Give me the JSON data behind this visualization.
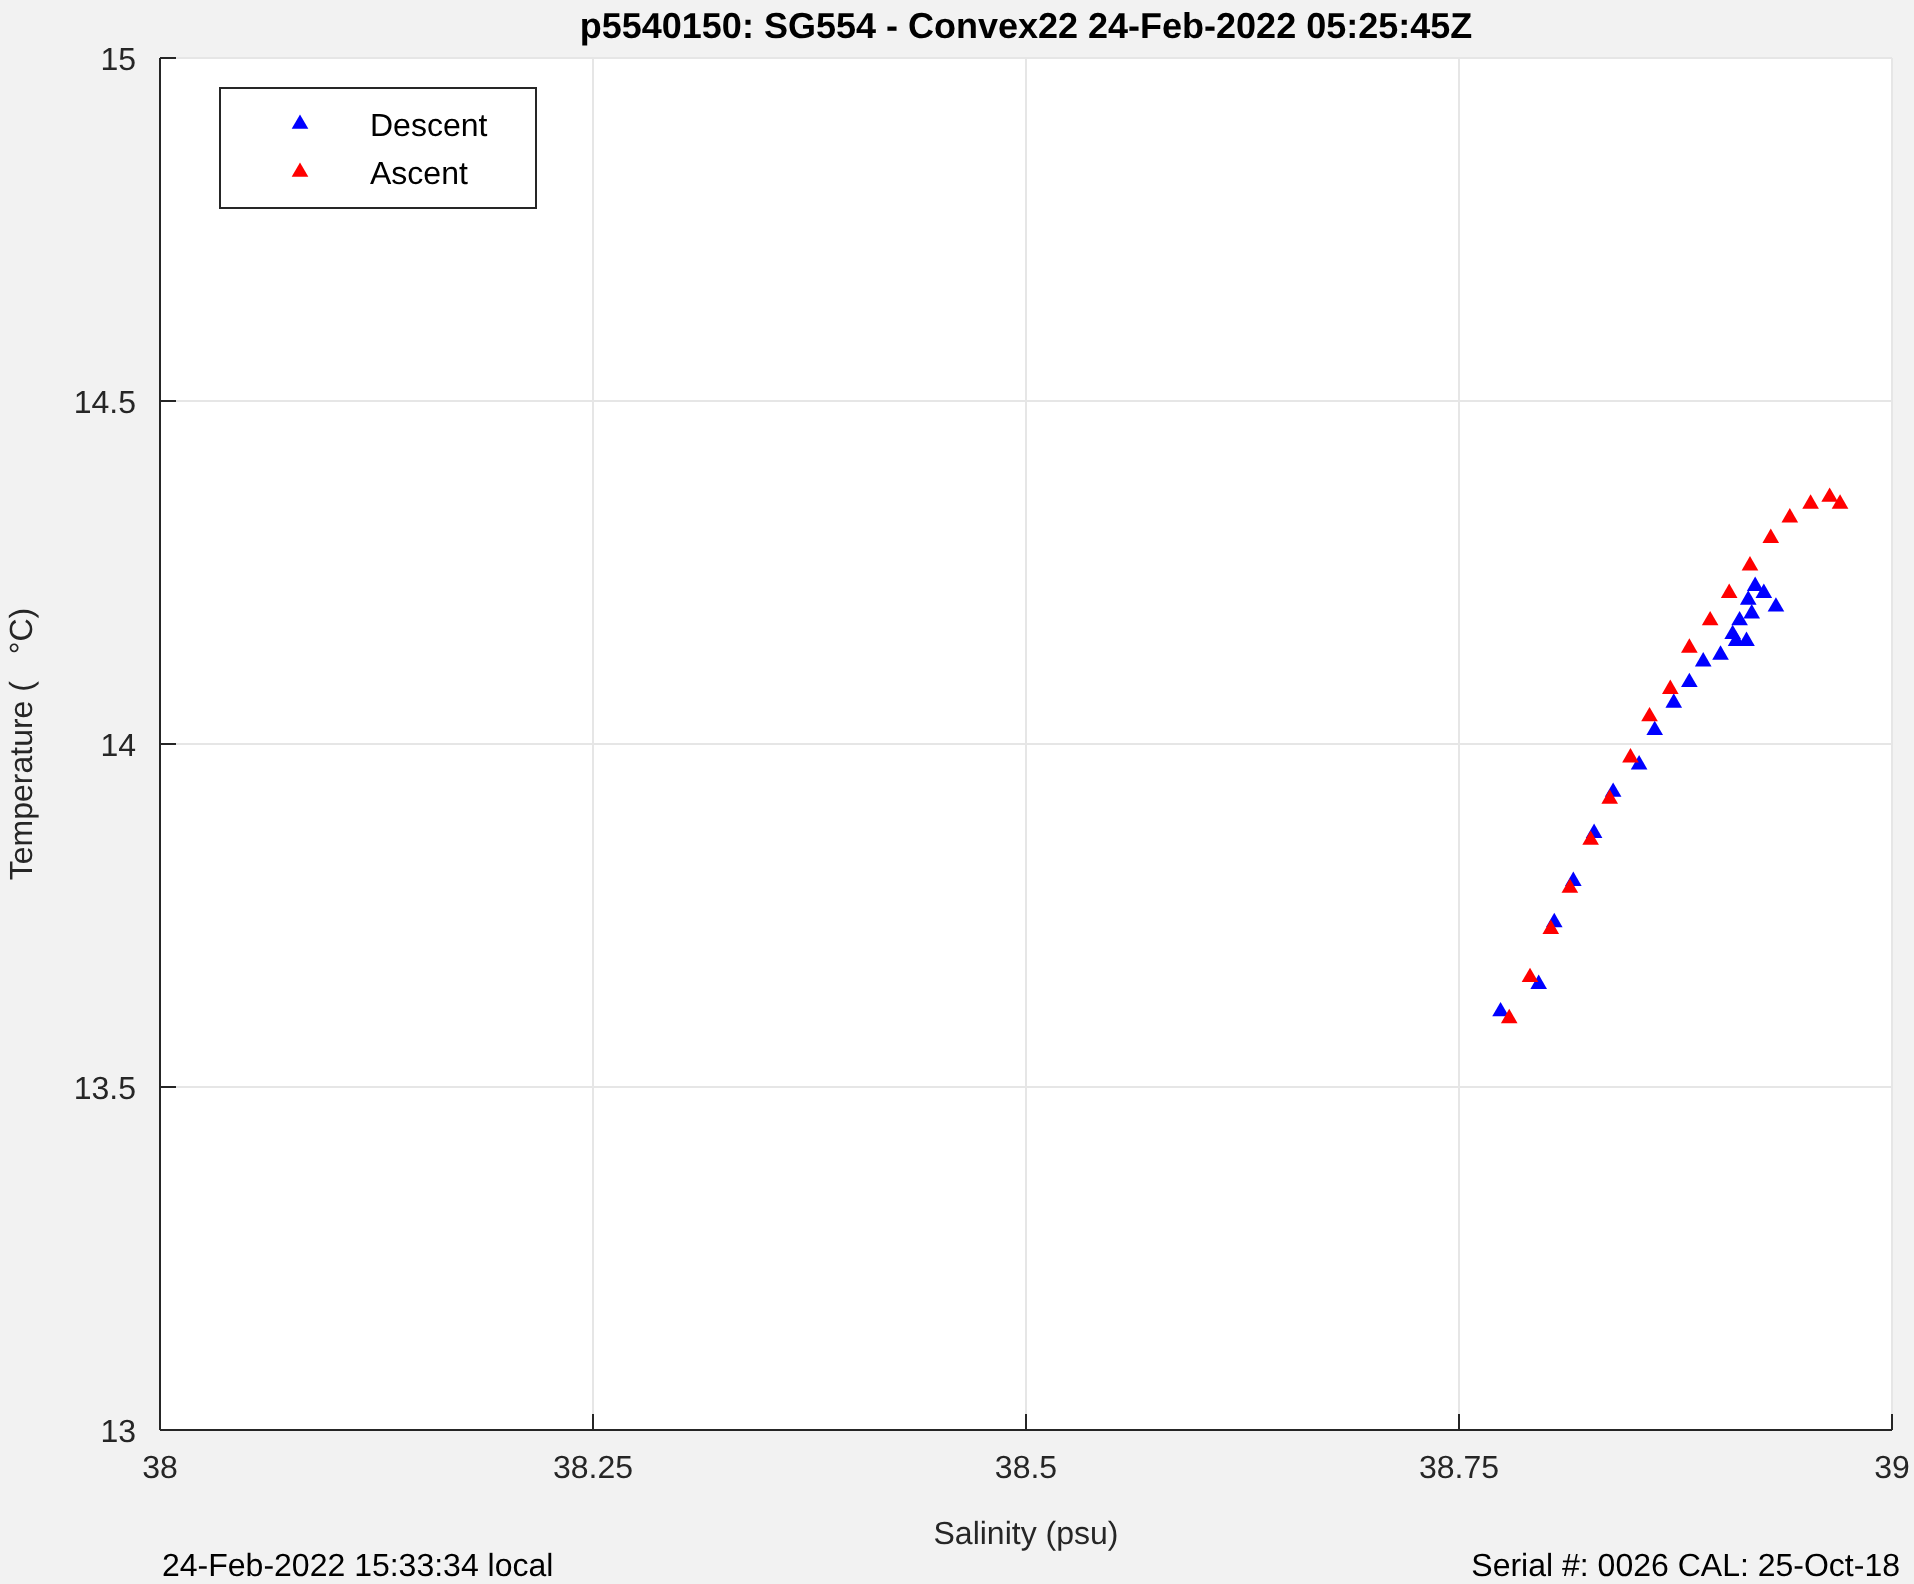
{
  "chart_data": {
    "type": "scatter",
    "title": "p5540150: SG554 - Convex22 24-Feb-2022 05:25:45Z",
    "xlabel": "Salinity (psu)",
    "ylabel": "Temperature (   °C)",
    "xlim": [
      38,
      39
    ],
    "xticks": [
      38,
      38.25,
      38.5,
      38.75,
      39
    ],
    "ylim": [
      13,
      15
    ],
    "yticks": [
      13,
      13.5,
      14,
      14.5,
      15
    ],
    "grid": true,
    "legend": "top left",
    "marker": "triangle",
    "annotations": [
      "24-Feb-2022 15:33:34 local",
      "Serial #: 0026 CAL: 25-Oct-18"
    ],
    "series": [
      {
        "name": "Descent",
        "color": "#0000ff",
        "x": [
          38.774,
          38.796,
          38.805,
          38.816,
          38.828,
          38.839,
          38.854,
          38.863,
          38.874,
          38.883,
          38.891,
          38.901,
          38.908,
          38.912,
          38.917,
          38.921,
          38.926,
          38.919,
          38.91,
          38.933,
          38.916
        ],
        "values": [
          13.61,
          13.65,
          13.74,
          13.8,
          13.87,
          13.93,
          13.97,
          14.02,
          14.06,
          14.09,
          14.12,
          14.13,
          14.16,
          14.18,
          14.21,
          14.23,
          14.22,
          14.19,
          14.15,
          14.2,
          14.15
        ]
      },
      {
        "name": "Ascent",
        "color": "#ff0000",
        "x": [
          38.779,
          38.791,
          38.803,
          38.814,
          38.826,
          38.837,
          38.849,
          38.86,
          38.872,
          38.883,
          38.895,
          38.906,
          38.918,
          38.93,
          38.941,
          38.953,
          38.964,
          38.97
        ],
        "values": [
          13.6,
          13.66,
          13.73,
          13.79,
          13.86,
          13.92,
          13.98,
          14.04,
          14.08,
          14.14,
          14.18,
          14.22,
          14.26,
          14.3,
          14.33,
          14.35,
          14.36,
          14.35
        ]
      }
    ]
  }
}
